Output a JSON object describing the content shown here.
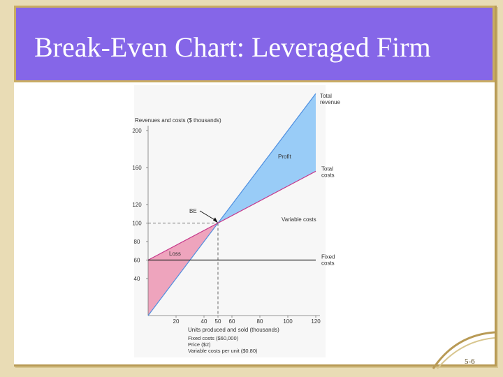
{
  "slide": {
    "title": "Break-Even Chart: Leveraged Firm",
    "number": "5-6",
    "colors": {
      "background": "#e9dcb5",
      "title_band": "#8566e8",
      "title_text": "#ffffff",
      "frame_gold": "#b89a55"
    }
  },
  "chart_data": {
    "type": "line",
    "ylabel": "Revenues and costs ($ thousands)",
    "xlabel": "Units produced and sold (thousands)",
    "x_ticks": [
      20,
      40,
      50,
      60,
      80,
      100,
      120
    ],
    "y_ticks": [
      40,
      60,
      80,
      100,
      120,
      160,
      200
    ],
    "xlim": [
      0,
      120
    ],
    "ylim": [
      0,
      200
    ],
    "series": [
      {
        "name": "Total revenue",
        "label_lines": [
          "Total",
          "revenue"
        ],
        "x": [
          0,
          120
        ],
        "y": [
          0,
          240
        ],
        "color": "#4f8fe0"
      },
      {
        "name": "Total costs",
        "label_lines": [
          "Total",
          "costs"
        ],
        "x": [
          0,
          120
        ],
        "y": [
          60,
          156
        ],
        "color": "#c63a8c"
      },
      {
        "name": "Fixed costs",
        "label_lines": [
          "Fixed",
          "costs"
        ],
        "x": [
          0,
          120
        ],
        "y": [
          60,
          60
        ],
        "color": "#222222"
      }
    ],
    "annotations": {
      "profit": "Profit",
      "loss": "Loss",
      "break_even": "BE",
      "variable_costs": "Variable costs",
      "break_even_point": {
        "x": 50,
        "y": 100
      }
    },
    "footnotes": [
      "Fixed costs ($60,000)",
      "Price ($2)",
      "Variable costs per unit ($0.80)"
    ],
    "fill_colors": {
      "profit": "#99ccf7",
      "loss": "#eea4bd"
    }
  }
}
